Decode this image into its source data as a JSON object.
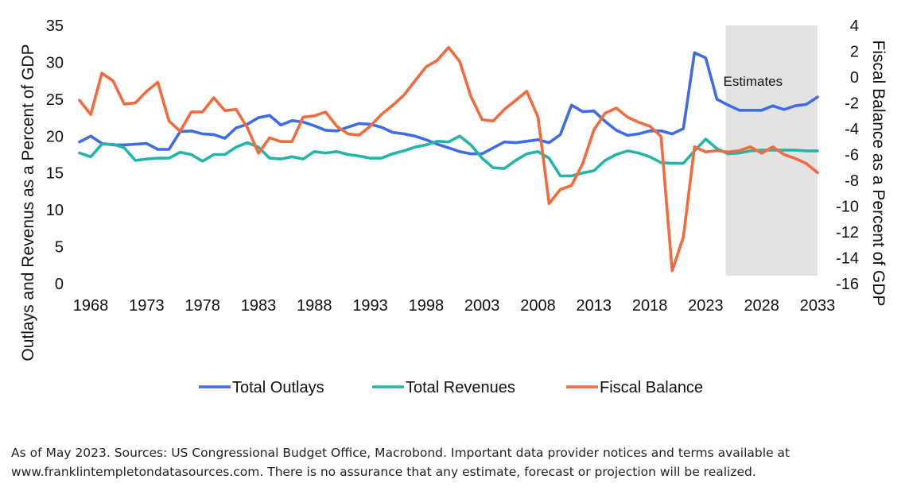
{
  "chart_data": {
    "type": "line",
    "title": "",
    "xlabel": "",
    "ylabel": "Outlays and Revenus as a Percent of GDP",
    "y2label": "Fiscal Balance as a Percent of GDP",
    "ylim": [
      0,
      35
    ],
    "y2lim": [
      -16,
      4
    ],
    "xlim": [
      1967,
      2033
    ],
    "x_ticks": [
      "1968",
      "1973",
      "1978",
      "1983",
      "1988",
      "1993",
      "1998",
      "2003",
      "2008",
      "2013",
      "2018",
      "2023",
      "2028",
      "2033"
    ],
    "y_ticks": [
      "0",
      "5",
      "10",
      "15",
      "20",
      "25",
      "30",
      "35"
    ],
    "y2_ticks": [
      "-16",
      "-14",
      "-12",
      "-10",
      "-8",
      "-6",
      "-4",
      "-2",
      "0",
      "2",
      "4"
    ],
    "grid": false,
    "legend_position": "bottom",
    "annotation": {
      "label": "Estimates",
      "x_start": 2025,
      "x_end": 2033
    },
    "x": [
      1967,
      1968,
      1969,
      1970,
      1971,
      1972,
      1973,
      1974,
      1975,
      1976,
      1977,
      1978,
      1979,
      1980,
      1981,
      1982,
      1983,
      1984,
      1985,
      1986,
      1987,
      1988,
      1989,
      1990,
      1991,
      1992,
      1993,
      1994,
      1995,
      1996,
      1997,
      1998,
      1999,
      2000,
      2001,
      2002,
      2003,
      2004,
      2005,
      2006,
      2007,
      2008,
      2009,
      2010,
      2011,
      2012,
      2013,
      2014,
      2015,
      2016,
      2017,
      2018,
      2019,
      2020,
      2021,
      2022,
      2023,
      2024,
      2025,
      2026,
      2027,
      2028,
      2029,
      2030,
      2031,
      2032,
      2033
    ],
    "series": [
      {
        "name": "Total Outlays",
        "axis": "left",
        "color": "#3f6be6",
        "values": [
          19.2,
          20.0,
          19.0,
          18.8,
          18.8,
          18.9,
          19.0,
          18.2,
          18.2,
          20.6,
          20.7,
          20.3,
          20.2,
          19.7,
          21.1,
          21.6,
          22.5,
          22.8,
          21.5,
          22.1,
          21.9,
          21.4,
          20.8,
          20.7,
          21.2,
          21.7,
          21.6,
          21.2,
          20.5,
          20.3,
          20.0,
          19.5,
          18.9,
          18.4,
          17.9,
          17.6,
          17.6,
          18.4,
          19.2,
          19.1,
          19.3,
          19.5,
          19.1,
          20.2,
          24.2,
          23.3,
          23.4,
          22.0,
          20.8,
          20.1,
          20.3,
          20.7,
          20.7,
          20.3,
          21.0,
          31.3,
          30.6,
          25.0,
          24.2,
          23.5,
          23.5,
          23.5,
          24.1,
          23.6,
          24.1,
          24.3,
          25.3
        ]
      },
      {
        "name": "Total Revenues",
        "axis": "left",
        "color": "#22b5a8",
        "values": [
          17.7,
          17.2,
          18.9,
          18.9,
          18.4,
          16.7,
          16.9,
          17.0,
          17.0,
          17.8,
          17.5,
          16.6,
          17.5,
          17.5,
          18.5,
          19.1,
          18.5,
          17.0,
          16.9,
          17.2,
          16.9,
          17.9,
          17.7,
          17.9,
          17.5,
          17.3,
          17.0,
          17.0,
          17.6,
          18.0,
          18.5,
          18.8,
          19.3,
          19.2,
          20.0,
          18.8,
          17.0,
          15.7,
          15.6,
          16.7,
          17.6,
          17.9,
          17.0,
          14.6,
          14.6,
          15.0,
          15.3,
          16.7,
          17.5,
          18.0,
          17.7,
          17.2,
          16.4,
          16.3,
          16.3,
          18.0,
          19.6,
          18.3,
          17.6,
          17.7,
          18.0,
          18.1,
          18.1,
          18.1,
          18.1,
          18.0,
          18.0
        ]
      },
      {
        "name": "Fiscal Balance",
        "axis": "right",
        "color": "#f36a3d",
        "values": [
          -1.8,
          -2.9,
          0.3,
          -0.3,
          -2.1,
          -2.0,
          -1.1,
          -0.4,
          -3.4,
          -4.2,
          -2.7,
          -2.7,
          -1.6,
          -2.6,
          -2.5,
          -3.9,
          -5.9,
          -4.7,
          -5.0,
          -5.0,
          -3.1,
          -3.0,
          -2.7,
          -3.8,
          -4.4,
          -4.5,
          -3.8,
          -2.9,
          -2.2,
          -1.4,
          -0.3,
          0.8,
          1.3,
          2.3,
          1.2,
          -1.5,
          -3.3,
          -3.4,
          -2.5,
          -1.8,
          -1.1,
          -3.1,
          -9.8,
          -8.7,
          -8.4,
          -6.7,
          -4.1,
          -2.8,
          -2.4,
          -3.1,
          -3.5,
          -3.8,
          -4.6,
          -15.0,
          -12.4,
          -5.4,
          -5.8,
          -5.7,
          -5.8,
          -5.7,
          -5.4,
          -5.9,
          -5.4,
          -6.0,
          -6.3,
          -6.7,
          -7.4
        ]
      }
    ]
  },
  "footnote": {
    "line1": "As of May 2023. Sources: US Congressional Budget Office, Macrobond. Important data provider notices and terms available at",
    "line2": "www.franklintempletondatasources.com. There is no assurance that any estimate, forecast or projection will be realized."
  }
}
